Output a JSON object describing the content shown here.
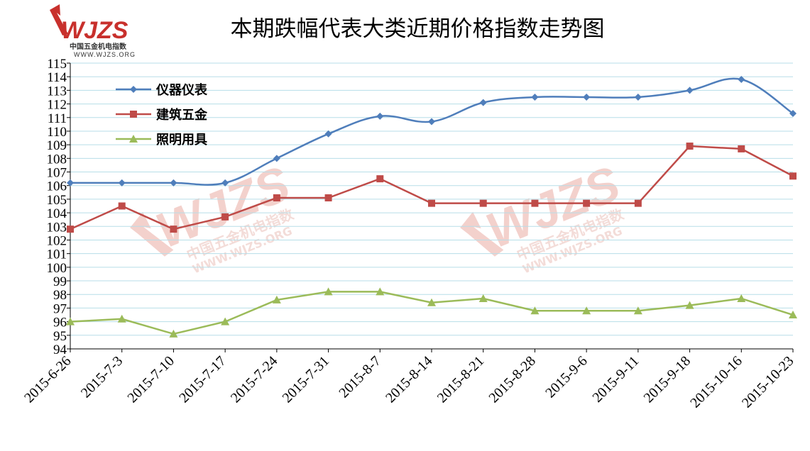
{
  "logo": {
    "mark": "WJZS",
    "name": "中国五金机电指数",
    "url": "WWW.WJZS.ORG"
  },
  "watermark": {
    "mark": "WJZS",
    "name": "中国五金机电指数",
    "url": "WWW.WJZS.ORG"
  },
  "colors": {
    "series1": "#4f7ebb",
    "series2": "#bf4b48",
    "series3": "#9bbb59",
    "grid": "#b7dee8",
    "logo": "#c8302c"
  },
  "chart_data": {
    "type": "line",
    "title": "本期跌幅代表大类近期价格指数走势图",
    "xlabel": "",
    "ylabel": "",
    "ylim": [
      94,
      115
    ],
    "yticks": [
      "94",
      "95",
      "96",
      "97",
      "98",
      "99",
      "100",
      "101",
      "102",
      "103",
      "104",
      "105",
      "106",
      "107",
      "108",
      "109",
      "110",
      "111",
      "112",
      "113",
      "114",
      "115"
    ],
    "grid": "horizontal",
    "legend_position": "top-left",
    "categories": [
      "2015-6-26",
      "2015-7-3",
      "2015-7-10",
      "2015-7-17",
      "2015-7-24",
      "2015-7-31",
      "2015-8-7",
      "2015-8-14",
      "2015-8-21",
      "2015-8-28",
      "2015-9-6",
      "2015-9-11",
      "2015-9-18",
      "2015-10-16",
      "2015-10-23"
    ],
    "series": [
      {
        "name": "仪器仪表",
        "marker": "diamond",
        "color": "#4f7ebb",
        "smooth": true,
        "values": [
          106.2,
          106.2,
          106.2,
          106.2,
          108.0,
          109.8,
          111.1,
          110.7,
          112.1,
          112.5,
          112.5,
          112.5,
          113.0,
          113.8,
          111.3
        ]
      },
      {
        "name": "建筑五金",
        "marker": "square",
        "color": "#bf4b48",
        "smooth": false,
        "values": [
          102.8,
          104.5,
          102.8,
          103.7,
          105.1,
          105.1,
          106.5,
          104.7,
          104.7,
          104.7,
          104.7,
          104.7,
          108.9,
          108.7,
          106.7
        ]
      },
      {
        "name": "照明用具",
        "marker": "triangle",
        "color": "#9bbb59",
        "smooth": false,
        "values": [
          96.0,
          96.2,
          95.1,
          96.0,
          97.6,
          98.2,
          98.2,
          97.4,
          97.7,
          96.8,
          96.8,
          96.8,
          97.2,
          97.7,
          96.5
        ]
      }
    ]
  }
}
